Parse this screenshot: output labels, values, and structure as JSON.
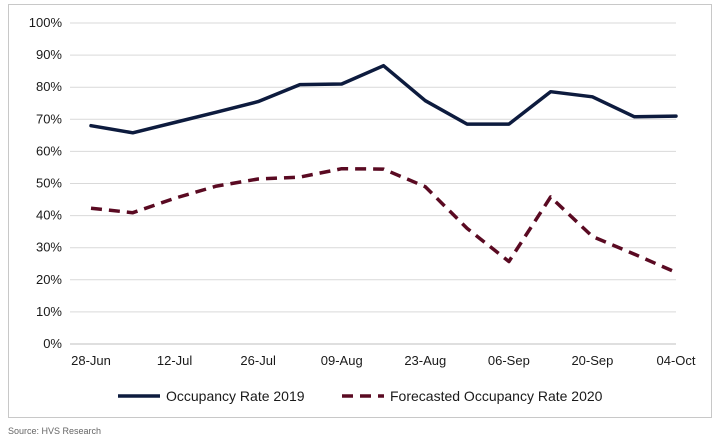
{
  "chart_data": {
    "type": "line",
    "title": "",
    "xlabel": "",
    "ylabel": "",
    "ylim": [
      0,
      100
    ],
    "y_tick_step": 10,
    "y_tick_format": "percent",
    "grid": "horizontal",
    "legend_position": "bottom",
    "x_tick_labels": [
      "28-Jun",
      "12-Jul",
      "26-Jul",
      "09-Aug",
      "23-Aug",
      "06-Sep",
      "20-Sep",
      "04-Oct"
    ],
    "x": [
      "28-Jun",
      "05-Jul",
      "12-Jul",
      "19-Jul",
      "26-Jul",
      "02-Aug",
      "09-Aug",
      "16-Aug",
      "23-Aug",
      "30-Aug",
      "06-Sep",
      "13-Sep",
      "20-Sep",
      "27-Sep",
      "04-Oct"
    ],
    "series": [
      {
        "name": "Occupancy Rate 2019",
        "color": "#0d1b3e",
        "style": "solid",
        "values": [
          68,
          65.8,
          69,
          72.2,
          75.5,
          80.8,
          81,
          86.7,
          75.8,
          68.5,
          68.5,
          78.6,
          77,
          70.8,
          71
        ]
      },
      {
        "name": "Forecasted Occupancy Rate 2020",
        "color": "#5a0a22",
        "style": "dashed",
        "values": [
          42.3,
          40.9,
          45.4,
          49.2,
          51.4,
          52,
          54.6,
          54.5,
          49,
          36,
          25.7,
          45.8,
          33.5,
          28,
          22.3
        ]
      }
    ]
  },
  "footnote": "Source: HVS Research"
}
